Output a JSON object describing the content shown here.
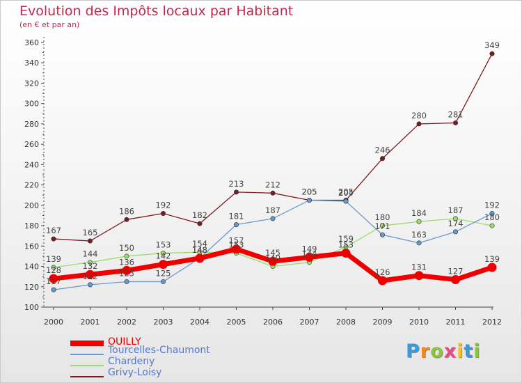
{
  "chart_data": {
    "type": "line",
    "title": "Evolution des Impôts locaux par Habitant",
    "subtitle": "(en € et par an)",
    "xlabel": "",
    "ylabel": "",
    "x": [
      2000,
      2001,
      2002,
      2003,
      2004,
      2005,
      2006,
      2007,
      2008,
      2009,
      2010,
      2011,
      2012
    ],
    "ylim": [
      100,
      360
    ],
    "ytick_step": 20,
    "grid": false,
    "legend_position": "bottom-left",
    "series": [
      {
        "name": "Grivy-Loisy",
        "color": "#7a1a22",
        "values": [
          167,
          165,
          186,
          192,
          182,
          213,
          212,
          205,
          205,
          246,
          280,
          281,
          349
        ]
      },
      {
        "name": "Chardeny",
        "color": "#99dd66",
        "values": [
          139,
          144,
          150,
          153,
          154,
          153,
          140,
          144,
          159,
          180,
          184,
          187,
          180
        ]
      },
      {
        "name": "Tourcelles-Chaumont",
        "color": "#6699cc",
        "values": [
          117,
          122,
          125,
          125,
          148,
          181,
          187,
          205,
          204,
          171,
          163,
          174,
          192
        ]
      },
      {
        "name": "OUILLY",
        "color": "#ee0000",
        "values": [
          128,
          132,
          136,
          142,
          148,
          157,
          145,
          149,
          153,
          126,
          131,
          127,
          139
        ]
      }
    ]
  },
  "brand": {
    "letters": [
      "P",
      "r",
      "o",
      "x",
      "i",
      "t",
      "i"
    ],
    "colors": [
      "#3a9ad9",
      "#f08a1c",
      "#8cc63f",
      "#e94b8a",
      "#f7c21c",
      "#3a9ad9",
      "#8cc63f"
    ]
  }
}
